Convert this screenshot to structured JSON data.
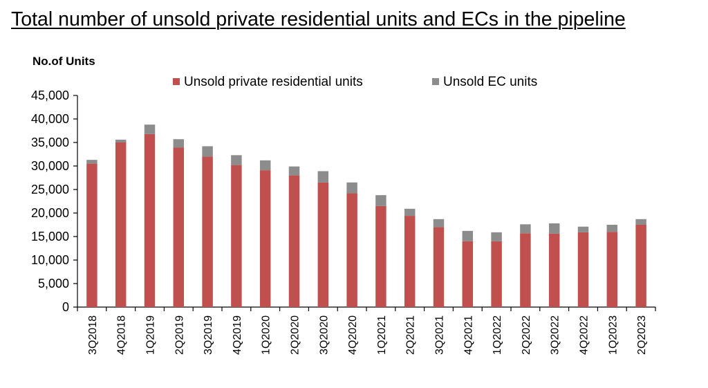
{
  "chart_data": {
    "type": "bar",
    "stacked": true,
    "title": "Total number of unsold private residential units and ECs in the pipeline",
    "ylabel": "No.of Units",
    "xlabel": "",
    "ylim": [
      0,
      45000
    ],
    "ytick_step": 5000,
    "ytick_labels": [
      "0",
      "5,000",
      "10,000",
      "15,000",
      "20,000",
      "25,000",
      "30,000",
      "35,000",
      "40,000",
      "45,000"
    ],
    "grid": false,
    "legend_position": "top",
    "categories": [
      "3Q2018",
      "4Q2018",
      "1Q2019",
      "2Q2019",
      "3Q2019",
      "4Q2019",
      "1Q2020",
      "2Q2020",
      "3Q2020",
      "4Q2020",
      "1Q2021",
      "2Q2021",
      "3Q2021",
      "4Q2021",
      "1Q2022",
      "2Q2022",
      "3Q2022",
      "4Q2022",
      "1Q2023",
      "2Q2023"
    ],
    "series": [
      {
        "name": "Unsold private residential units",
        "color": "#c0504d",
        "values": [
          30500,
          35000,
          36800,
          33900,
          32000,
          30200,
          29100,
          28000,
          26500,
          24200,
          21500,
          19400,
          17000,
          14000,
          14000,
          15700,
          15600,
          15900,
          16000,
          17500
        ]
      },
      {
        "name": "Unsold EC units",
        "color": "#8c8c8c",
        "values": [
          800,
          600,
          2000,
          1800,
          2200,
          2100,
          2100,
          1900,
          2400,
          2300,
          2300,
          1500,
          1700,
          2200,
          1900,
          1900,
          2200,
          1200,
          1500,
          1200
        ]
      }
    ]
  }
}
